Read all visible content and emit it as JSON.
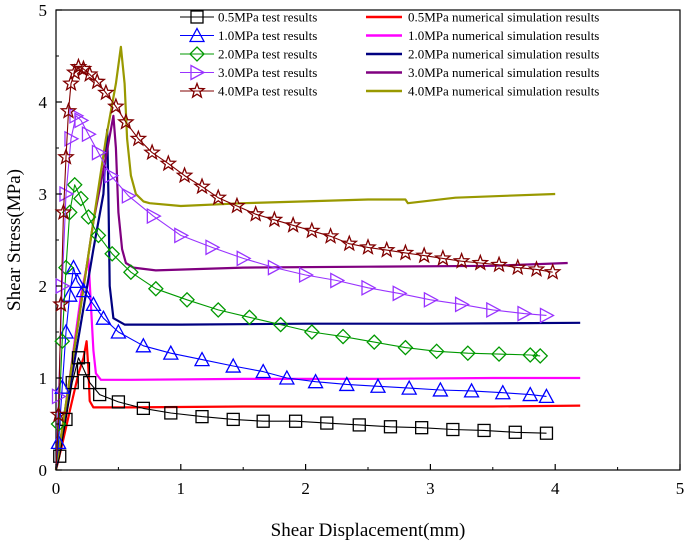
{
  "chart_data": {
    "type": "line",
    "title": "",
    "xlabel": "Shear Displacement(mm)",
    "ylabel": "Shear Stress(MPa)",
    "xlim": [
      0,
      5
    ],
    "ylim": [
      0,
      5
    ],
    "xticks": [
      "0",
      "1",
      "2",
      "3",
      "4",
      "5"
    ],
    "yticks": [
      "0",
      "1",
      "2",
      "3",
      "4",
      "5"
    ],
    "grid": false,
    "legend_position": "top-right",
    "series": [
      {
        "name": "0.5MPa test results",
        "kind": "test",
        "marker": "square",
        "color": "#000000",
        "x": [
          0,
          0.03,
          0.08,
          0.13,
          0.18,
          0.22,
          0.27,
          0.35,
          0.5,
          0.7,
          0.92,
          1.17,
          1.42,
          1.66,
          1.92,
          2.17,
          2.43,
          2.68,
          2.93,
          3.18,
          3.43,
          3.68,
          3.93
        ],
        "y": [
          0,
          0.15,
          0.55,
          0.95,
          1.22,
          1.1,
          0.95,
          0.82,
          0.74,
          0.67,
          0.62,
          0.58,
          0.55,
          0.53,
          0.53,
          0.51,
          0.49,
          0.47,
          0.46,
          0.44,
          0.43,
          0.41,
          0.4
        ]
      },
      {
        "name": "0.5MPa numerical simulation results",
        "kind": "sim",
        "color": "#ff0000",
        "x": [
          0,
          0.05,
          0.12,
          0.18,
          0.22,
          0.245,
          0.26,
          0.27,
          0.3,
          0.6,
          1.5,
          2.5,
          3.5,
          4.2
        ],
        "y": [
          0,
          0.28,
          0.7,
          1.05,
          1.22,
          1.4,
          1.1,
          0.75,
          0.68,
          0.68,
          0.69,
          0.69,
          0.69,
          0.7
        ]
      },
      {
        "name": "1.0MPa test results",
        "kind": "test",
        "marker": "triangle-up",
        "color": "#0000ff",
        "x": [
          0,
          0.02,
          0.05,
          0.08,
          0.11,
          0.14,
          0.17,
          0.22,
          0.3,
          0.38,
          0.5,
          0.7,
          0.92,
          1.17,
          1.42,
          1.66,
          1.85,
          2.08,
          2.33,
          2.58,
          2.83,
          3.08,
          3.33,
          3.58,
          3.8,
          3.93
        ],
        "y": [
          0,
          0.3,
          0.9,
          1.5,
          1.9,
          2.2,
          2.05,
          1.95,
          1.8,
          1.65,
          1.5,
          1.35,
          1.27,
          1.2,
          1.13,
          1.07,
          1.0,
          0.96,
          0.93,
          0.91,
          0.89,
          0.87,
          0.86,
          0.84,
          0.82,
          0.8
        ]
      },
      {
        "name": "1.0MPa numerical simulation results",
        "kind": "sim",
        "color": "#ff00ff",
        "x": [
          0,
          0.05,
          0.1,
          0.15,
          0.2,
          0.26,
          0.28,
          0.3,
          0.32,
          0.36,
          0.6,
          1.5,
          2.5,
          3.5,
          4.2
        ],
        "y": [
          0,
          0.4,
          0.9,
          1.4,
          1.9,
          2.3,
          1.8,
          1.3,
          1.05,
          0.98,
          0.98,
          0.99,
          0.99,
          1.0,
          1.0
        ]
      },
      {
        "name": "2.0MPa test results",
        "kind": "test",
        "marker": "diamond",
        "color": "#009900",
        "x": [
          0,
          0.02,
          0.05,
          0.08,
          0.11,
          0.15,
          0.2,
          0.26,
          0.34,
          0.45,
          0.6,
          0.8,
          1.05,
          1.3,
          1.55,
          1.8,
          2.05,
          2.3,
          2.55,
          2.8,
          3.05,
          3.3,
          3.55,
          3.8,
          3.88
        ],
        "y": [
          0,
          0.5,
          1.4,
          2.2,
          2.8,
          3.1,
          2.95,
          2.75,
          2.55,
          2.35,
          2.15,
          1.97,
          1.85,
          1.74,
          1.66,
          1.58,
          1.5,
          1.45,
          1.39,
          1.33,
          1.29,
          1.27,
          1.26,
          1.25,
          1.24
        ]
      },
      {
        "name": "2.0MPa numerical simulation results",
        "kind": "sim",
        "color": "#000080",
        "x": [
          0,
          0.1,
          0.2,
          0.3,
          0.38,
          0.41,
          0.42,
          0.43,
          0.46,
          0.55,
          1.0,
          2.0,
          3.0,
          4.2
        ],
        "y": [
          0,
          0.8,
          1.6,
          2.4,
          3.0,
          3.7,
          3.0,
          2.0,
          1.65,
          1.58,
          1.58,
          1.59,
          1.59,
          1.6
        ]
      },
      {
        "name": "3.0MPa test results",
        "kind": "test",
        "marker": "triangle-right",
        "color": "#9933ff",
        "x": [
          0,
          0.02,
          0.05,
          0.08,
          0.12,
          0.16,
          0.2,
          0.26,
          0.34,
          0.44,
          0.58,
          0.78,
          1.0,
          1.25,
          1.5,
          1.75,
          2.0,
          2.25,
          2.5,
          2.75,
          3.0,
          3.25,
          3.5,
          3.75,
          3.93
        ],
        "y": [
          0,
          0.8,
          2.0,
          3.0,
          3.6,
          3.85,
          3.8,
          3.65,
          3.45,
          3.2,
          2.98,
          2.76,
          2.55,
          2.42,
          2.3,
          2.2,
          2.12,
          2.06,
          1.98,
          1.92,
          1.85,
          1.8,
          1.74,
          1.7,
          1.68
        ]
      },
      {
        "name": "3.0MPa numerical simulation results",
        "kind": "sim",
        "color": "#800080",
        "x": [
          0,
          0.1,
          0.2,
          0.3,
          0.4,
          0.46,
          0.48,
          0.5,
          0.53,
          0.56,
          0.62,
          0.8,
          1.5,
          2.5,
          3.5,
          4.1
        ],
        "y": [
          0,
          0.9,
          1.8,
          2.7,
          3.4,
          3.85,
          3.5,
          2.8,
          2.4,
          2.25,
          2.2,
          2.17,
          2.2,
          2.21,
          2.22,
          2.25
        ]
      },
      {
        "name": "4.0MPa test results",
        "kind": "test",
        "marker": "star",
        "color": "#800000",
        "x": [
          0,
          0.02,
          0.04,
          0.06,
          0.08,
          0.1,
          0.12,
          0.15,
          0.18,
          0.22,
          0.27,
          0.33,
          0.4,
          0.48,
          0.56,
          0.66,
          0.77,
          0.9,
          1.03,
          1.17,
          1.3,
          1.45,
          1.6,
          1.75,
          1.9,
          2.05,
          2.2,
          2.35,
          2.5,
          2.65,
          2.8,
          2.95,
          3.1,
          3.25,
          3.4,
          3.55,
          3.7,
          3.85,
          3.98
        ],
        "y": [
          0,
          0.6,
          1.8,
          2.8,
          3.4,
          3.9,
          4.2,
          4.32,
          4.38,
          4.36,
          4.3,
          4.22,
          4.1,
          3.95,
          3.78,
          3.6,
          3.45,
          3.33,
          3.2,
          3.08,
          2.96,
          2.87,
          2.78,
          2.72,
          2.66,
          2.6,
          2.54,
          2.46,
          2.42,
          2.39,
          2.36,
          2.33,
          2.3,
          2.27,
          2.25,
          2.23,
          2.2,
          2.18,
          2.15
        ]
      },
      {
        "name": "4.0MPa numerical simulation results",
        "kind": "sim",
        "color": "#999900",
        "x": [
          0,
          0.1,
          0.2,
          0.3,
          0.4,
          0.48,
          0.52,
          0.55,
          0.57,
          0.6,
          0.64,
          0.7,
          0.75,
          1.0,
          1.5,
          2.0,
          2.5,
          2.8,
          2.82,
          3.2,
          3.6,
          4.0
        ],
        "y": [
          0,
          0.9,
          1.8,
          2.7,
          3.6,
          4.2,
          4.6,
          4.2,
          3.6,
          3.2,
          3.0,
          2.92,
          2.9,
          2.87,
          2.9,
          2.92,
          2.94,
          2.94,
          2.9,
          2.96,
          2.98,
          3.0
        ]
      }
    ]
  }
}
